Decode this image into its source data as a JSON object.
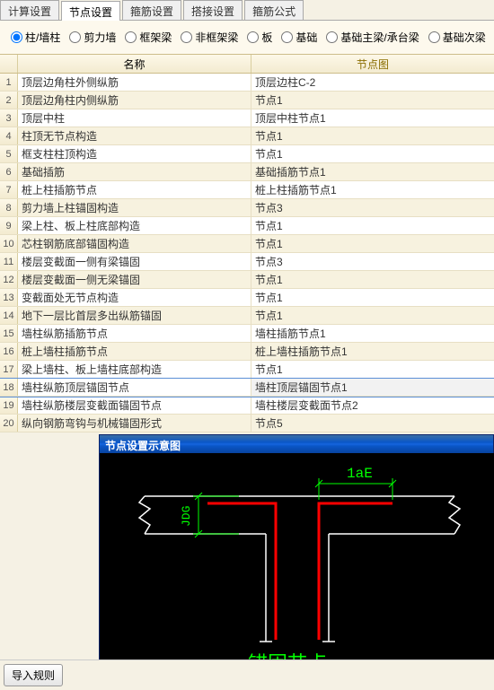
{
  "tabs": {
    "items": [
      "计算设置",
      "节点设置",
      "箍筋设置",
      "搭接设置",
      "箍筋公式"
    ],
    "active_index": 1
  },
  "radios": {
    "items": [
      "柱/墙柱",
      "剪力墙",
      "框架梁",
      "非框架梁",
      "板",
      "基础",
      "基础主梁/承台梁",
      "基础次梁"
    ],
    "selected_index": 0
  },
  "table": {
    "headers": {
      "name": "名称",
      "diagram": "节点图"
    },
    "selected_index": 17,
    "rows": [
      {
        "n": "1",
        "name": "顶层边角柱外侧纵筋",
        "diagram": "顶层边柱C-2"
      },
      {
        "n": "2",
        "name": "顶层边角柱内侧纵筋",
        "diagram": "节点1"
      },
      {
        "n": "3",
        "name": "顶层中柱",
        "diagram": "顶层中柱节点1"
      },
      {
        "n": "4",
        "name": "柱顶无节点构造",
        "diagram": "节点1"
      },
      {
        "n": "5",
        "name": "框支柱柱顶构造",
        "diagram": "节点1"
      },
      {
        "n": "6",
        "name": "基础插筋",
        "diagram": "基础插筋节点1"
      },
      {
        "n": "7",
        "name": "桩上柱插筋节点",
        "diagram": "桩上柱插筋节点1"
      },
      {
        "n": "8",
        "name": "剪力墙上柱锚固构造",
        "diagram": "节点3"
      },
      {
        "n": "9",
        "name": "梁上柱、板上柱底部构造",
        "diagram": "节点1"
      },
      {
        "n": "10",
        "name": "芯柱钢筋底部锚固构造",
        "diagram": "节点1"
      },
      {
        "n": "11",
        "name": "楼层变截面一侧有梁锚固",
        "diagram": "节点3"
      },
      {
        "n": "12",
        "name": "楼层变截面一侧无梁锚固",
        "diagram": "节点1"
      },
      {
        "n": "13",
        "name": "变截面处无节点构造",
        "diagram": "节点1"
      },
      {
        "n": "14",
        "name": "地下一层比首层多出纵筋锚固",
        "diagram": "节点1"
      },
      {
        "n": "15",
        "name": "墙柱纵筋插筋节点",
        "diagram": "墙柱插筋节点1"
      },
      {
        "n": "16",
        "name": "桩上墙柱插筋节点",
        "diagram": "桩上墙柱插筋节点1"
      },
      {
        "n": "17",
        "name": "梁上墙柱、板上墙柱底部构造",
        "diagram": "节点1"
      },
      {
        "n": "18",
        "name": "墙柱纵筋顶层锚固节点",
        "diagram": "墙柱顶层锚固节点1"
      },
      {
        "n": "19",
        "name": "墙柱纵筋楼层变截面锚固节点",
        "diagram": "墙柱楼层变截面节点2"
      },
      {
        "n": "20",
        "name": "纵向钢筋弯钩与机械锚固形式",
        "diagram": "节点5"
      }
    ]
  },
  "preview": {
    "title": "节点设置示意图",
    "dim_label_top": "1aE",
    "dim_label_side": "JDG",
    "caption": "锚固节点一",
    "colors": {
      "bg": "#000000",
      "rebar": "#ff0000",
      "outline": "#ffffff",
      "dim": "#00ff00",
      "caption": "#00ff00"
    }
  },
  "buttons": {
    "import_rule": "导入规则"
  }
}
